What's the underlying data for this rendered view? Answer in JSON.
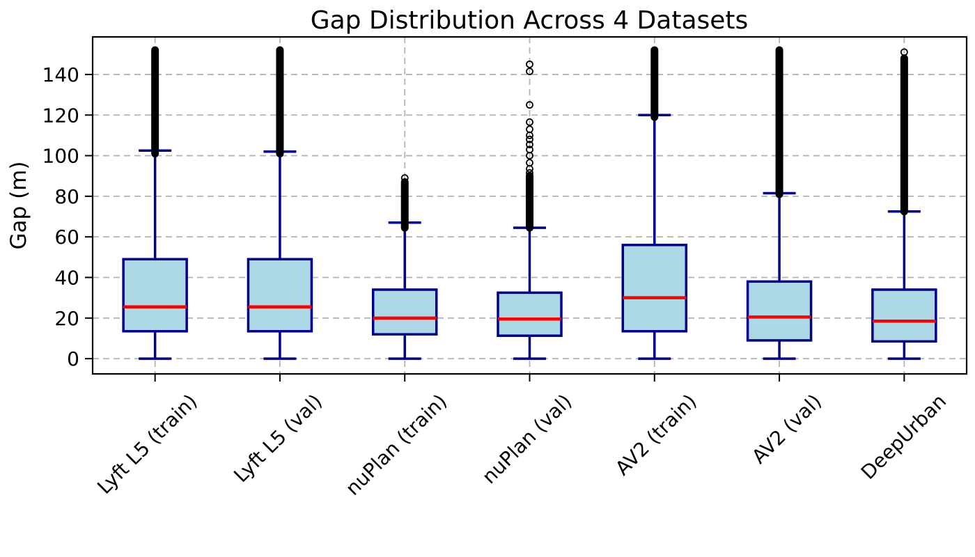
{
  "figure": {
    "title": "Gap Distribution Across 4 Datasets",
    "ylabel": "Gap (m)"
  },
  "chart_data": {
    "type": "boxplot",
    "title": "Gap Distribution Across 4 Datasets",
    "xlabel": "",
    "ylabel": "Gap (m)",
    "categories": [
      "Lyft L5 (train)",
      "Lyft L5 (val)",
      "nuPlan (train)",
      "nuPlan (val)",
      "AV2 (train)",
      "AV2 (val)",
      "DeepUrban"
    ],
    "yticks": [
      0,
      20,
      40,
      60,
      80,
      100,
      120,
      140
    ],
    "ylim": [
      -7.5,
      158.5
    ],
    "grid": {
      "horizontal": true,
      "vertical": true,
      "style": "dashed"
    },
    "legend": "none",
    "series": [
      {
        "name": "Lyft L5 (train)",
        "q1": 13.5,
        "median": 25.5,
        "q3": 49,
        "whisker_low": 0,
        "whisker_high": 102.5,
        "outlier_column": [
          101,
          152
        ],
        "outlier_points": []
      },
      {
        "name": "Lyft L5 (val)",
        "q1": 13.5,
        "median": 25.5,
        "q3": 49,
        "whisker_low": 0,
        "whisker_high": 102,
        "outlier_column": [
          101,
          152
        ],
        "outlier_points": []
      },
      {
        "name": "nuPlan (train)",
        "q1": 12,
        "median": 20,
        "q3": 34,
        "whisker_low": 0,
        "whisker_high": 67,
        "outlier_column": [
          64.5,
          87
        ],
        "outlier_points": [
          89
        ]
      },
      {
        "name": "nuPlan (val)",
        "q1": 11.3,
        "median": 19.5,
        "q3": 32.5,
        "whisker_low": 0,
        "whisker_high": 64.5,
        "outlier_column": [
          64.5,
          90
        ],
        "outlier_points": [
          91.5,
          93.5,
          96.5,
          100,
          103,
          105.5,
          108,
          110,
          113,
          116.5,
          125,
          141.5,
          145
        ]
      },
      {
        "name": "AV2 (train)",
        "q1": 13.5,
        "median": 30,
        "q3": 56,
        "whisker_low": 0,
        "whisker_high": 120,
        "outlier_column": [
          119,
          152
        ],
        "outlier_points": []
      },
      {
        "name": "AV2 (val)",
        "q1": 9,
        "median": 20.5,
        "q3": 38,
        "whisker_low": 0,
        "whisker_high": 81.5,
        "outlier_column": [
          81,
          152
        ],
        "outlier_points": []
      },
      {
        "name": "DeepUrban",
        "q1": 8.5,
        "median": 18.5,
        "q3": 34,
        "whisker_low": 0,
        "whisker_high": 72.5,
        "outlier_column": [
          72.5,
          148
        ],
        "outlier_points": [
          151
        ]
      }
    ],
    "colors": {
      "box_fill": "#ADD8E6",
      "box_edge": "#00008B",
      "whisker": "#00008B",
      "median": "#FF0000",
      "outlier": "#000000",
      "grid": "#b3b3b3",
      "axis": "#000000",
      "background": "#ffffff"
    }
  }
}
